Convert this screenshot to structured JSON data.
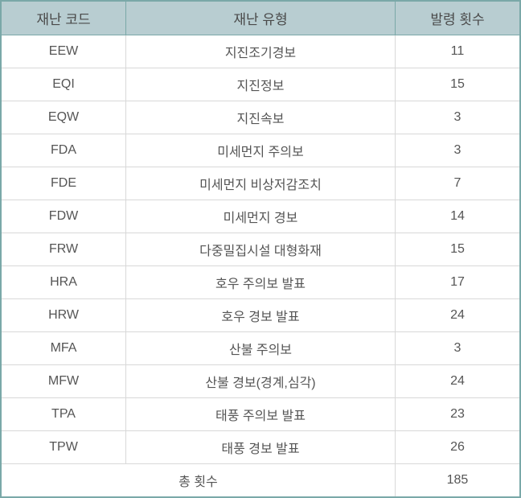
{
  "table": {
    "type": "table",
    "background_color": "#ffffff",
    "outer_border_color": "#7aa8a8",
    "outer_border_width": 2,
    "header_bg_color": "#b8cdd1",
    "header_text_color": "#4a4a4a",
    "header_border_color": "#7aa8a8",
    "cell_text_color": "#555555",
    "cell_border_color": "#d8d8d8",
    "header_fontsize": 17,
    "cell_fontsize": 16,
    "columns": [
      {
        "key": "code",
        "label": "재난 코드",
        "width_pct": 24,
        "align": "center"
      },
      {
        "key": "type",
        "label": "재난 유형",
        "width_pct": 52,
        "align": "center"
      },
      {
        "key": "count",
        "label": "발령 횟수",
        "width_pct": 24,
        "align": "center"
      }
    ],
    "rows": [
      {
        "code": "EEW",
        "type": "지진조기경보",
        "count": 11
      },
      {
        "code": "EQI",
        "type": "지진정보",
        "count": 15
      },
      {
        "code": "EQW",
        "type": "지진속보",
        "count": 3
      },
      {
        "code": "FDA",
        "type": "미세먼지 주의보",
        "count": 3
      },
      {
        "code": "FDE",
        "type": "미세먼지 비상저감조치",
        "count": 7
      },
      {
        "code": "FDW",
        "type": "미세먼지 경보",
        "count": 14
      },
      {
        "code": "FRW",
        "type": "다중밀집시설 대형화재",
        "count": 15
      },
      {
        "code": "HRA",
        "type": "호우 주의보 발표",
        "count": 17
      },
      {
        "code": "HRW",
        "type": "호우 경보 발표",
        "count": 24
      },
      {
        "code": "MFA",
        "type": "산불 주의보",
        "count": 3
      },
      {
        "code": "MFW",
        "type": "산불 경보(경계,심각)",
        "count": 24
      },
      {
        "code": "TPA",
        "type": "태풍 주의보 발표",
        "count": 23
      },
      {
        "code": "TPW",
        "type": "태풍 경보 발표",
        "count": 26
      }
    ],
    "total": {
      "label": "총 횟수",
      "value": 185
    }
  }
}
